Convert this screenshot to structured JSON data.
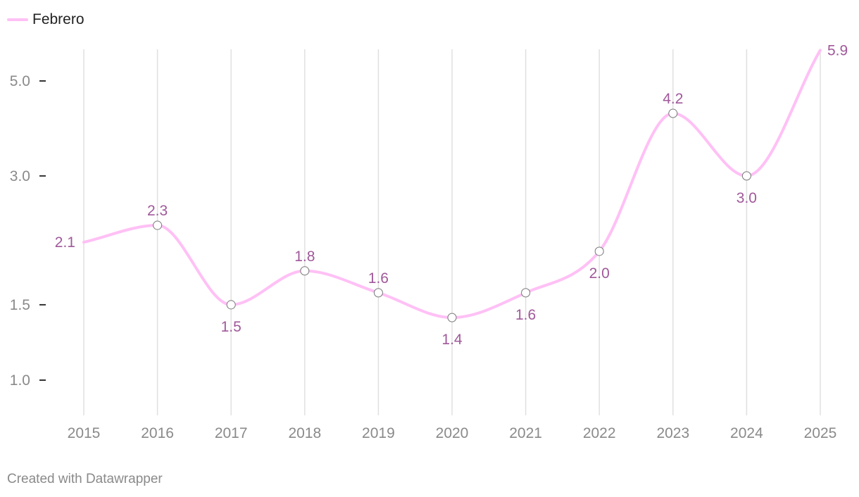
{
  "chart_data": {
    "type": "line",
    "x": [
      "2015",
      "2016",
      "2017",
      "2018",
      "2019",
      "2020",
      "2021",
      "2022",
      "2023",
      "2024",
      "2025"
    ],
    "series": [
      {
        "name": "Febrero",
        "values": [
          2.1,
          2.3,
          1.5,
          1.8,
          1.6,
          1.4,
          1.6,
          2.0,
          4.2,
          3.0,
          5.9
        ]
      }
    ],
    "y_scale": "log",
    "y_ticks": [
      1.0,
      1.5,
      3.0,
      5.0
    ],
    "ylim": [
      0.85,
      5.9
    ],
    "grid": "vertical",
    "legend_position": "top-left",
    "data_label_positions": [
      "left",
      "above",
      "below",
      "above",
      "above",
      "below",
      "below",
      "below",
      "above",
      "below",
      "right"
    ]
  },
  "colors": {
    "line": "#ffc0f5",
    "label": "#a0599a",
    "grid": "#e0e0e0",
    "tick_text": "#8a8a8a"
  },
  "footer": {
    "credit": "Created with Datawrapper"
  }
}
